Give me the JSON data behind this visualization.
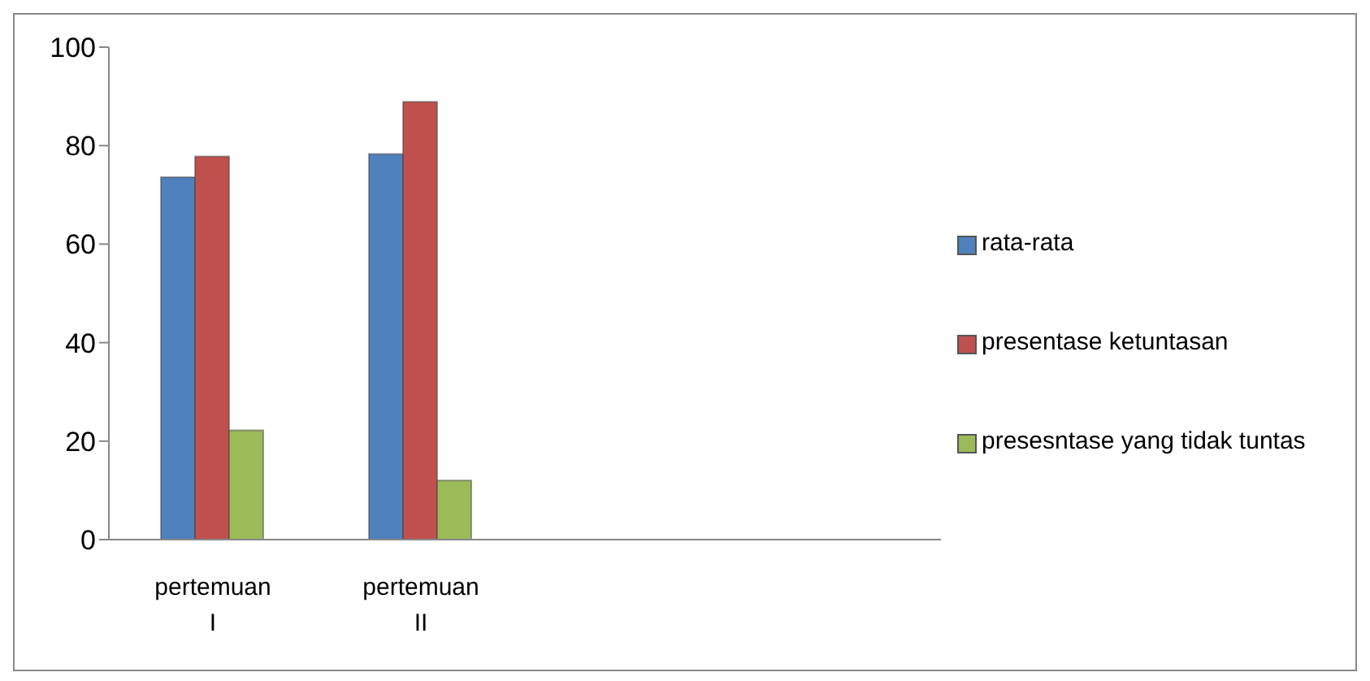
{
  "chart_data": {
    "type": "bar",
    "categories": [
      "pertemuan I",
      "pertemuan II",
      null,
      null
    ],
    "series": [
      {
        "name": "rata-rata",
        "color": "#4f81bd",
        "values": [
          73.6,
          78.3,
          null,
          null
        ]
      },
      {
        "name": "presentase ketuntasan",
        "color": "#c0504d",
        "values": [
          77.8,
          88.9,
          null,
          null
        ]
      },
      {
        "name": "presesntase yang tidak tuntas",
        "color": "#9bbb59",
        "values": [
          22.2,
          12,
          null,
          null
        ]
      }
    ],
    "ylim": [
      0,
      100
    ],
    "yticks": [
      0,
      20,
      40,
      60,
      80,
      100
    ],
    "grid": false,
    "legend": "right"
  }
}
